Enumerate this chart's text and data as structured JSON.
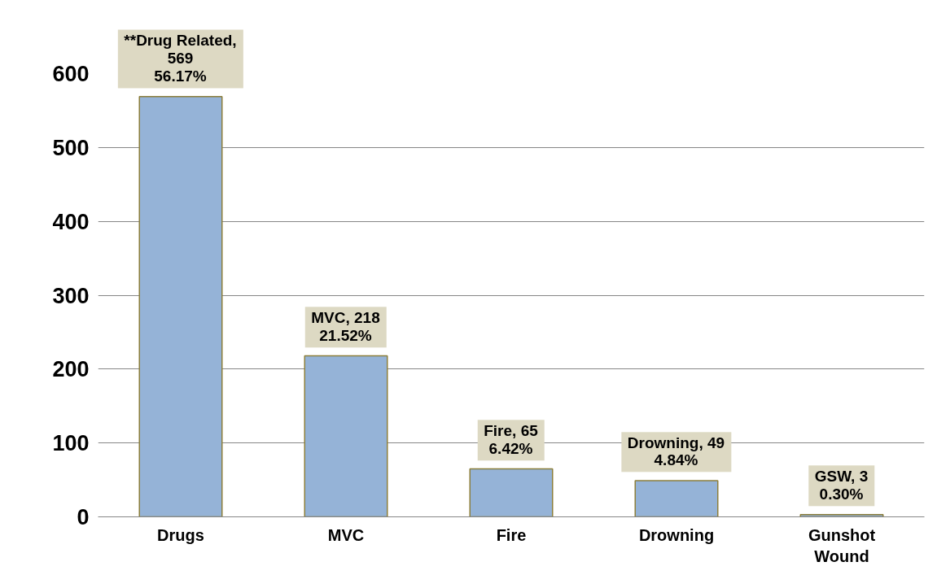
{
  "chart_data": {
    "type": "bar",
    "categories": [
      "Drugs",
      "MVC",
      "Fire",
      "Drowning",
      "Gunshot Wound"
    ],
    "values": [
      569,
      218,
      65,
      49,
      3
    ],
    "color": "#95b3d7",
    "value_labels": [
      "**Drug Related,\n569\n56.17%",
      "MVC, 218\n21.52%",
      "Fire, 65\n6.42%",
      "Drowning, 49\n4.84%",
      "GSW, 3\n0.30%"
    ],
    "ylim": [
      0,
      600
    ],
    "yticks": [
      0,
      100,
      200,
      300,
      400,
      500,
      600
    ],
    "grid": "y"
  }
}
